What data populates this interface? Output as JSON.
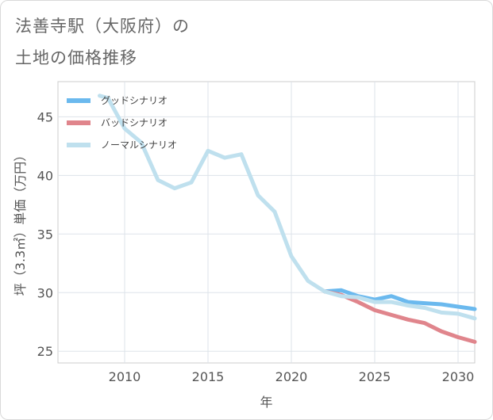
{
  "title_lines": [
    "法善寺駅（大阪府）の",
    "土地の価格推移"
  ],
  "chart_data": {
    "type": "line",
    "xlabel": "年",
    "ylabel": "坪（3.3㎡）単価（万円）",
    "xlim": [
      2006,
      2031
    ],
    "ylim": [
      24,
      48
    ],
    "xticks": [
      2010,
      2015,
      2020,
      2025,
      2030
    ],
    "yticks": [
      25,
      30,
      35,
      40,
      45
    ],
    "grid": true,
    "legend_position": "top-left",
    "series": [
      {
        "name": "グッドシナリオ",
        "color": "#6bb9ee",
        "x": [
          2022,
          2023,
          2024,
          2025,
          2026,
          2027,
          2028,
          2029,
          2030,
          2031
        ],
        "y": [
          30.1,
          30.2,
          29.7,
          29.4,
          29.7,
          29.2,
          29.1,
          29.0,
          28.8,
          28.6
        ]
      },
      {
        "name": "バッドシナリオ",
        "color": "#e0858c",
        "x": [
          2022,
          2023,
          2024,
          2025,
          2026,
          2027,
          2028,
          2029,
          2030,
          2031
        ],
        "y": [
          30.1,
          29.8,
          29.2,
          28.5,
          28.1,
          27.7,
          27.4,
          26.7,
          26.2,
          25.8
        ]
      },
      {
        "name": "ノーマルシナリオ",
        "color": "#bfe0ee",
        "x": [
          2008.5,
          2009,
          2010,
          2011,
          2012,
          2013,
          2014,
          2015,
          2016,
          2017,
          2018,
          2019,
          2020,
          2021,
          2022,
          2023,
          2024,
          2025,
          2026,
          2027,
          2028,
          2029,
          2030,
          2031
        ],
        "y": [
          46.8,
          46.6,
          44.0,
          42.8,
          39.6,
          38.9,
          39.4,
          42.1,
          41.5,
          41.8,
          38.3,
          36.9,
          33.1,
          31.0,
          30.1,
          29.7,
          29.6,
          29.2,
          29.2,
          28.9,
          28.7,
          28.3,
          28.2,
          27.8
        ]
      }
    ]
  }
}
